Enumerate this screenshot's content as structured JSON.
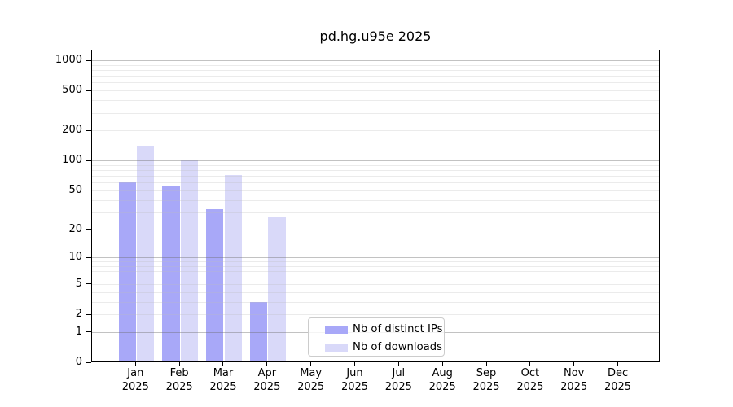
{
  "chart_data": {
    "type": "bar",
    "title": "pd.hg.u95e 2025",
    "categories": [
      "Jan",
      "Feb",
      "Mar",
      "Apr",
      "May",
      "Jun",
      "Jul",
      "Aug",
      "Sep",
      "Oct",
      "Nov",
      "Dec"
    ],
    "x_year_label": "2025",
    "series": [
      {
        "name": "Nb of distinct IPs",
        "color": "#a8a8f8",
        "values": [
          60,
          56,
          32,
          3,
          0,
          0,
          0,
          0,
          0,
          0,
          0,
          0
        ]
      },
      {
        "name": "Nb of downloads",
        "color": "#d9d9f9",
        "values": [
          140,
          103,
          72,
          27,
          0,
          0,
          0,
          0,
          0,
          0,
          0,
          0
        ]
      }
    ],
    "y_axis": {
      "scale": "log1p",
      "tick_labels": [
        "0",
        "1",
        "2",
        "5",
        "10",
        "20",
        "50",
        "100",
        "200",
        "500",
        "1000"
      ],
      "tick_values": [
        0,
        1,
        2,
        5,
        10,
        20,
        50,
        100,
        200,
        500,
        1000
      ],
      "major_gridlines": [
        1,
        10,
        100,
        1000
      ],
      "minor_gridlines": [
        2,
        3,
        4,
        5,
        6,
        7,
        8,
        9,
        20,
        30,
        40,
        50,
        60,
        70,
        80,
        90,
        200,
        300,
        400,
        500,
        600,
        700,
        800,
        900
      ],
      "ylim": [
        0,
        1280
      ],
      "grid": true
    },
    "legend_position": "lower center-left"
  }
}
